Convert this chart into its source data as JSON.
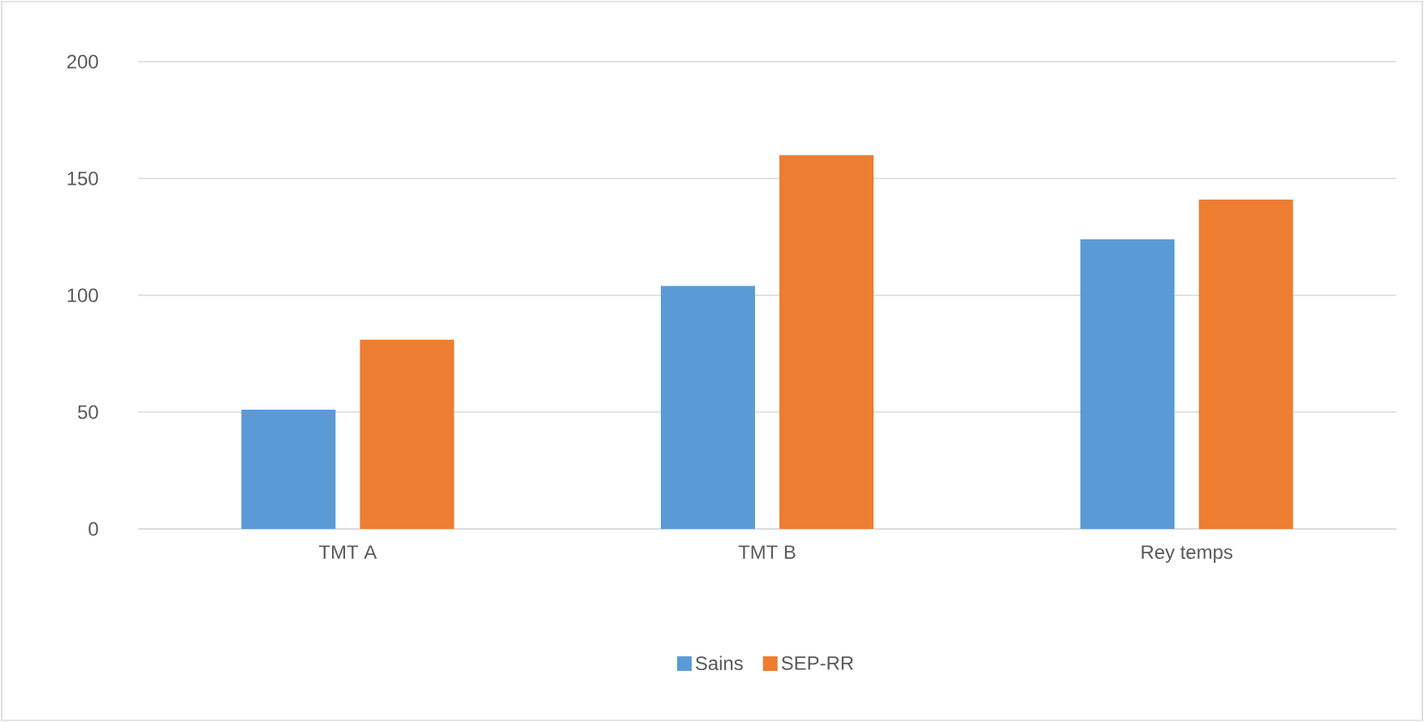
{
  "chart_data": {
    "type": "bar",
    "categories": [
      "TMT A",
      "TMT B",
      "Rey temps"
    ],
    "series": [
      {
        "name": "Sains",
        "color": "#5b9bd5",
        "values": [
          51,
          104,
          124
        ]
      },
      {
        "name": "SEP-RR",
        "color": "#ed7d31",
        "values": [
          81,
          160,
          141
        ]
      }
    ],
    "ylim": [
      0,
      200
    ],
    "yticks": [
      0,
      50,
      100,
      150,
      200
    ],
    "grid": "y",
    "legend": "bottom"
  }
}
